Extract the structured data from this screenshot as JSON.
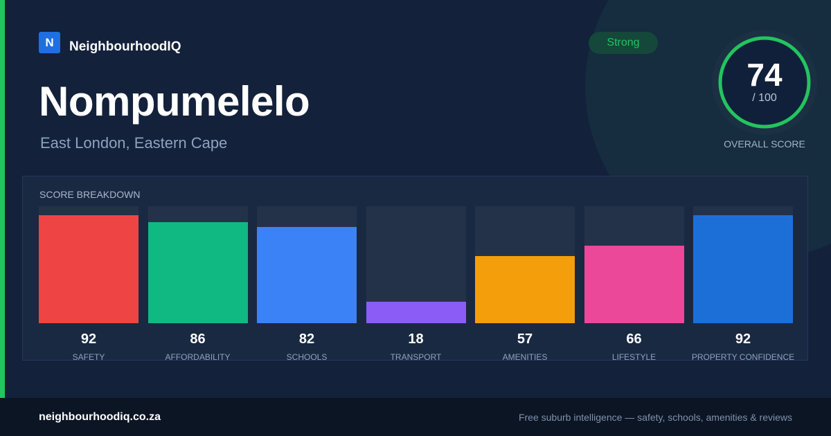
{
  "brand": {
    "logo_letter": "N",
    "name": "NeighbourhoodIQ"
  },
  "suburb": {
    "name": "Nompumelelo",
    "location": "East London, Eastern Cape"
  },
  "rating": {
    "badge": "Strong",
    "score": "74",
    "max": "/ 100",
    "label": "OVERALL SCORE",
    "score_value": 74
  },
  "breakdown": {
    "title": "SCORE BREAKDOWN",
    "items": [
      {
        "label": "SAFETY",
        "value": "92",
        "score": 92,
        "color": "#ef4444"
      },
      {
        "label": "AFFORDABILITY",
        "value": "86",
        "score": 86,
        "color": "#10b981"
      },
      {
        "label": "SCHOOLS",
        "value": "82",
        "score": 82,
        "color": "#3b82f6"
      },
      {
        "label": "TRANSPORT",
        "value": "18",
        "score": 18,
        "color": "#8b5cf6"
      },
      {
        "label": "AMENITIES",
        "value": "57",
        "score": 57,
        "color": "#f59e0b"
      },
      {
        "label": "LIFESTYLE",
        "value": "66",
        "score": 66,
        "color": "#ec4899"
      },
      {
        "label": "PROPERTY CONFIDENCE",
        "value": "92",
        "score": 92,
        "color": "#1d6fd8"
      }
    ]
  },
  "footer": {
    "url": "neighbourhoodiq.co.za",
    "tagline": "Free suburb intelligence — safety, schools, amenities & reviews"
  },
  "colors": {
    "accent": "#22c55e",
    "brand": "#1f6fe0",
    "background": "#13213b"
  }
}
